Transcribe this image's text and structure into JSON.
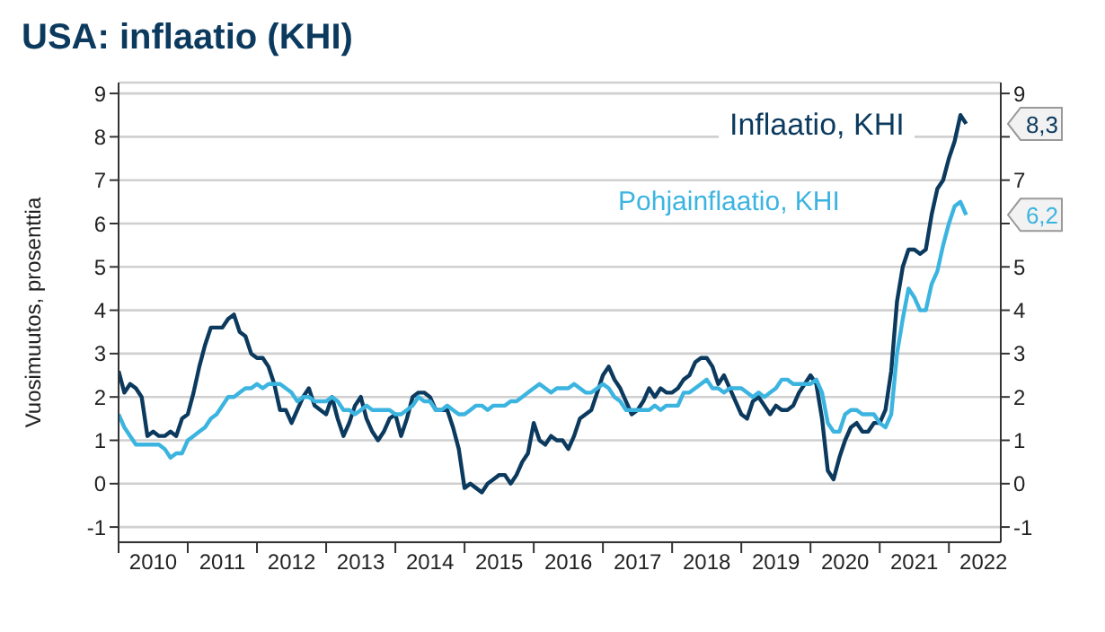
{
  "chart_data": {
    "type": "line",
    "title": "USA: inflaatio (KHI)",
    "ylabel": "Vuosimuutos, prosenttia",
    "x": [
      "2010-01",
      "2010-02",
      "2010-03",
      "2010-04",
      "2010-05",
      "2010-06",
      "2010-07",
      "2010-08",
      "2010-09",
      "2010-10",
      "2010-11",
      "2010-12",
      "2011-01",
      "2011-02",
      "2011-03",
      "2011-04",
      "2011-05",
      "2011-06",
      "2011-07",
      "2011-08",
      "2011-09",
      "2011-10",
      "2011-11",
      "2011-12",
      "2012-01",
      "2012-02",
      "2012-03",
      "2012-04",
      "2012-05",
      "2012-06",
      "2012-07",
      "2012-08",
      "2012-09",
      "2012-10",
      "2012-11",
      "2012-12",
      "2013-01",
      "2013-02",
      "2013-03",
      "2013-04",
      "2013-05",
      "2013-06",
      "2013-07",
      "2013-08",
      "2013-09",
      "2013-10",
      "2013-11",
      "2013-12",
      "2014-01",
      "2014-02",
      "2014-03",
      "2014-04",
      "2014-05",
      "2014-06",
      "2014-07",
      "2014-08",
      "2014-09",
      "2014-10",
      "2014-11",
      "2014-12",
      "2015-01",
      "2015-02",
      "2015-03",
      "2015-04",
      "2015-05",
      "2015-06",
      "2015-07",
      "2015-08",
      "2015-09",
      "2015-10",
      "2015-11",
      "2015-12",
      "2016-01",
      "2016-02",
      "2016-03",
      "2016-04",
      "2016-05",
      "2016-06",
      "2016-07",
      "2016-08",
      "2016-09",
      "2016-10",
      "2016-11",
      "2016-12",
      "2017-01",
      "2017-02",
      "2017-03",
      "2017-04",
      "2017-05",
      "2017-06",
      "2017-07",
      "2017-08",
      "2017-09",
      "2017-10",
      "2017-11",
      "2017-12",
      "2018-01",
      "2018-02",
      "2018-03",
      "2018-04",
      "2018-05",
      "2018-06",
      "2018-07",
      "2018-08",
      "2018-09",
      "2018-10",
      "2018-11",
      "2018-12",
      "2019-01",
      "2019-02",
      "2019-03",
      "2019-04",
      "2019-05",
      "2019-06",
      "2019-07",
      "2019-08",
      "2019-09",
      "2019-10",
      "2019-11",
      "2019-12",
      "2020-01",
      "2020-02",
      "2020-03",
      "2020-04",
      "2020-05",
      "2020-06",
      "2020-07",
      "2020-08",
      "2020-09",
      "2020-10",
      "2020-11",
      "2020-12",
      "2021-01",
      "2021-02",
      "2021-03",
      "2021-04",
      "2021-05",
      "2021-06",
      "2021-07",
      "2021-08",
      "2021-09",
      "2021-10",
      "2021-11",
      "2021-12",
      "2022-01",
      "2022-02",
      "2022-03",
      "2022-04"
    ],
    "series": [
      {
        "name": "Inflaatio, KHI",
        "color": "#0b3a5e",
        "values": [
          2.6,
          2.1,
          2.3,
          2.2,
          2.0,
          1.1,
          1.2,
          1.1,
          1.1,
          1.2,
          1.1,
          1.5,
          1.6,
          2.1,
          2.7,
          3.2,
          3.6,
          3.6,
          3.6,
          3.8,
          3.9,
          3.5,
          3.4,
          3.0,
          2.9,
          2.9,
          2.7,
          2.3,
          1.7,
          1.7,
          1.4,
          1.7,
          2.0,
          2.2,
          1.8,
          1.7,
          1.6,
          2.0,
          1.5,
          1.1,
          1.4,
          1.8,
          2.0,
          1.5,
          1.2,
          1.0,
          1.2,
          1.5,
          1.6,
          1.1,
          1.5,
          2.0,
          2.1,
          2.1,
          2.0,
          1.7,
          1.7,
          1.7,
          1.3,
          0.8,
          -0.1,
          0.0,
          -0.1,
          -0.2,
          0.0,
          0.1,
          0.2,
          0.2,
          0.0,
          0.2,
          0.5,
          0.7,
          1.4,
          1.0,
          0.9,
          1.1,
          1.0,
          1.0,
          0.8,
          1.1,
          1.5,
          1.6,
          1.7,
          2.1,
          2.5,
          2.7,
          2.4,
          2.2,
          1.9,
          1.6,
          1.7,
          1.9,
          2.2,
          2.0,
          2.2,
          2.1,
          2.1,
          2.2,
          2.4,
          2.5,
          2.8,
          2.9,
          2.9,
          2.7,
          2.3,
          2.5,
          2.2,
          1.9,
          1.6,
          1.5,
          1.9,
          2.0,
          1.8,
          1.6,
          1.8,
          1.7,
          1.7,
          1.8,
          2.1,
          2.3,
          2.5,
          2.3,
          1.5,
          0.3,
          0.1,
          0.6,
          1.0,
          1.3,
          1.4,
          1.2,
          1.2,
          1.4,
          1.4,
          1.7,
          2.6,
          4.2,
          5.0,
          5.4,
          5.4,
          5.3,
          5.4,
          6.2,
          6.8,
          7.0,
          7.5,
          7.9,
          8.5,
          8.3
        ]
      },
      {
        "name": "Pohjainflaatio, KHI",
        "color": "#3cb4e0",
        "values": [
          1.6,
          1.3,
          1.1,
          0.9,
          0.9,
          0.9,
          0.9,
          0.9,
          0.8,
          0.6,
          0.7,
          0.7,
          1.0,
          1.1,
          1.2,
          1.3,
          1.5,
          1.6,
          1.8,
          2.0,
          2.0,
          2.1,
          2.2,
          2.2,
          2.3,
          2.2,
          2.3,
          2.3,
          2.3,
          2.2,
          2.1,
          1.9,
          2.0,
          2.0,
          1.9,
          1.9,
          1.9,
          2.0,
          1.9,
          1.7,
          1.7,
          1.6,
          1.7,
          1.8,
          1.7,
          1.7,
          1.7,
          1.7,
          1.6,
          1.6,
          1.7,
          1.8,
          2.0,
          1.9,
          1.9,
          1.7,
          1.7,
          1.8,
          1.7,
          1.6,
          1.6,
          1.7,
          1.8,
          1.8,
          1.7,
          1.8,
          1.8,
          1.8,
          1.9,
          1.9,
          2.0,
          2.1,
          2.2,
          2.3,
          2.2,
          2.1,
          2.2,
          2.2,
          2.2,
          2.3,
          2.2,
          2.1,
          2.1,
          2.2,
          2.3,
          2.2,
          2.0,
          1.9,
          1.7,
          1.7,
          1.7,
          1.7,
          1.7,
          1.8,
          1.7,
          1.8,
          1.8,
          1.8,
          2.1,
          2.1,
          2.2,
          2.3,
          2.4,
          2.2,
          2.2,
          2.1,
          2.2,
          2.2,
          2.2,
          2.1,
          2.0,
          2.1,
          2.0,
          2.1,
          2.2,
          2.4,
          2.4,
          2.3,
          2.3,
          2.3,
          2.3,
          2.4,
          2.1,
          1.4,
          1.2,
          1.2,
          1.6,
          1.7,
          1.7,
          1.6,
          1.6,
          1.6,
          1.4,
          1.3,
          1.6,
          3.0,
          3.8,
          4.5,
          4.3,
          4.0,
          4.0,
          4.6,
          4.9,
          5.5,
          6.0,
          6.4,
          6.5,
          6.2
        ]
      }
    ],
    "xlim": [
      "2010-01",
      "2022-10"
    ],
    "xticks": [
      {
        "value": "2010-01",
        "label": null
      },
      {
        "value": "2010-07",
        "label": "2010"
      },
      {
        "value": "2011-01",
        "label": null
      },
      {
        "value": "2011-07",
        "label": "2011"
      },
      {
        "value": "2012-01",
        "label": null
      },
      {
        "value": "2012-07",
        "label": "2012"
      },
      {
        "value": "2013-01",
        "label": null
      },
      {
        "value": "2013-07",
        "label": "2013"
      },
      {
        "value": "2014-01",
        "label": null
      },
      {
        "value": "2014-07",
        "label": "2014"
      },
      {
        "value": "2015-01",
        "label": null
      },
      {
        "value": "2015-07",
        "label": "2015"
      },
      {
        "value": "2016-01",
        "label": null
      },
      {
        "value": "2016-07",
        "label": "2016"
      },
      {
        "value": "2017-01",
        "label": null
      },
      {
        "value": "2017-07",
        "label": "2017"
      },
      {
        "value": "2018-01",
        "label": null
      },
      {
        "value": "2018-07",
        "label": "2018"
      },
      {
        "value": "2019-01",
        "label": null
      },
      {
        "value": "2019-07",
        "label": "2019"
      },
      {
        "value": "2020-01",
        "label": null
      },
      {
        "value": "2020-07",
        "label": "2020"
      },
      {
        "value": "2021-01",
        "label": null
      },
      {
        "value": "2021-07",
        "label": "2021"
      },
      {
        "value": "2022-01",
        "label": null
      },
      {
        "value": "2022-07",
        "label": "2022"
      }
    ],
    "ylim": [
      -1.35,
      9.25
    ],
    "yticks": [
      -1,
      0,
      1,
      2,
      3,
      4,
      5,
      6,
      7,
      8,
      9
    ],
    "y2lim": [
      -1.35,
      9.25
    ],
    "y2ticks": [
      -1,
      0,
      1,
      2,
      3,
      4,
      5,
      {
        "value": 6,
        "label": null
      },
      7,
      {
        "value": 8,
        "label": null
      },
      9
    ],
    "annotations": [
      {
        "text": "8,3",
        "x": "2022-04",
        "y": 8.3
      },
      {
        "text": "6,2",
        "x": "2022-04",
        "y": 6.2
      }
    ],
    "grid": "y"
  }
}
